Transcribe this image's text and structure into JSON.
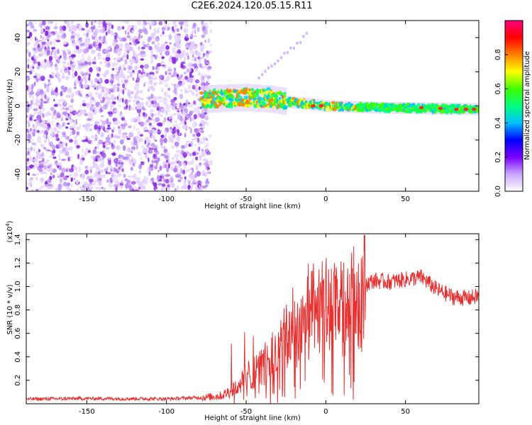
{
  "title": "C2E6.2024.120.05.15.R11",
  "chart_data": [
    {
      "type": "heatmap",
      "xlabel": "Height of straight line (km)",
      "ylabel": "Frequency (Hz)",
      "xlim": [
        -188,
        96
      ],
      "ylim": [
        -50,
        50
      ],
      "xticks": [
        -150,
        -100,
        -50,
        0,
        50
      ],
      "yticks": [
        -40,
        -20,
        0,
        20,
        40
      ],
      "grid": false,
      "colorbar": {
        "label": "Normalized spectral amplitude",
        "range": [
          0,
          1
        ],
        "ticks": [
          "0.0",
          "0.2",
          "0.4",
          "0.6",
          "0.8"
        ],
        "colormap": [
          "#ffffff",
          "#c9a6ff",
          "#7a00ff",
          "#0000ff",
          "#00c0ff",
          "#00ff7f",
          "#40ff00",
          "#ffff00",
          "#ff8000",
          "#ff0000",
          "#ff0080"
        ]
      },
      "regions": [
        {
          "feature": "noise",
          "x_range": [
            -188,
            -72
          ],
          "y_range": [
            -50,
            50
          ],
          "amplitude": 0.15
        },
        {
          "feature": "signal_core",
          "x_range": [
            -78,
            96
          ],
          "center_hz": [
            [
              -78,
              4
            ],
            [
              -50,
              5
            ],
            [
              -35,
              4
            ],
            [
              -20,
              2
            ],
            [
              0,
              0
            ],
            [
              30,
              -1
            ],
            [
              96,
              -2
            ]
          ],
          "amplitude_range": [
            0.4,
            0.95
          ]
        },
        {
          "feature": "spur_line",
          "x_range": [
            -42,
            -12
          ],
          "y_range": [
            16,
            42
          ],
          "amplitude": 0.15
        }
      ]
    },
    {
      "type": "line",
      "xlabel": "Height of straight line (km)",
      "ylabel": "SNR (10 * v/v)",
      "y_multiplier_label": "(x10^4)",
      "xlim": [
        -188,
        96
      ],
      "ylim": [
        0,
        14500
      ],
      "xticks": [
        -150,
        -100,
        -50,
        0,
        50
      ],
      "yticks": [
        "0.2",
        "0.4",
        "0.6",
        "0.8",
        "1.0",
        "1.2",
        "1.4"
      ],
      "grid": false,
      "series": [
        {
          "color": "#e83030",
          "x": [
            -188,
            -150,
            -100,
            -75,
            -65,
            -55,
            -48,
            -40,
            -35,
            -30,
            -25,
            -20,
            -15,
            -10,
            -5,
            0,
            5,
            10,
            15,
            20,
            25,
            30,
            40,
            50,
            60,
            70,
            80,
            90,
            96
          ],
          "values": [
            400,
            450,
            420,
            550,
            700,
            1500,
            2500,
            3200,
            3800,
            4500,
            5500,
            6200,
            6800,
            7200,
            7800,
            8200,
            8000,
            7800,
            8200,
            9200,
            10200,
            10500,
            10400,
            10600,
            10800,
            9700,
            9100,
            9000,
            9200
          ]
        }
      ]
    }
  ]
}
